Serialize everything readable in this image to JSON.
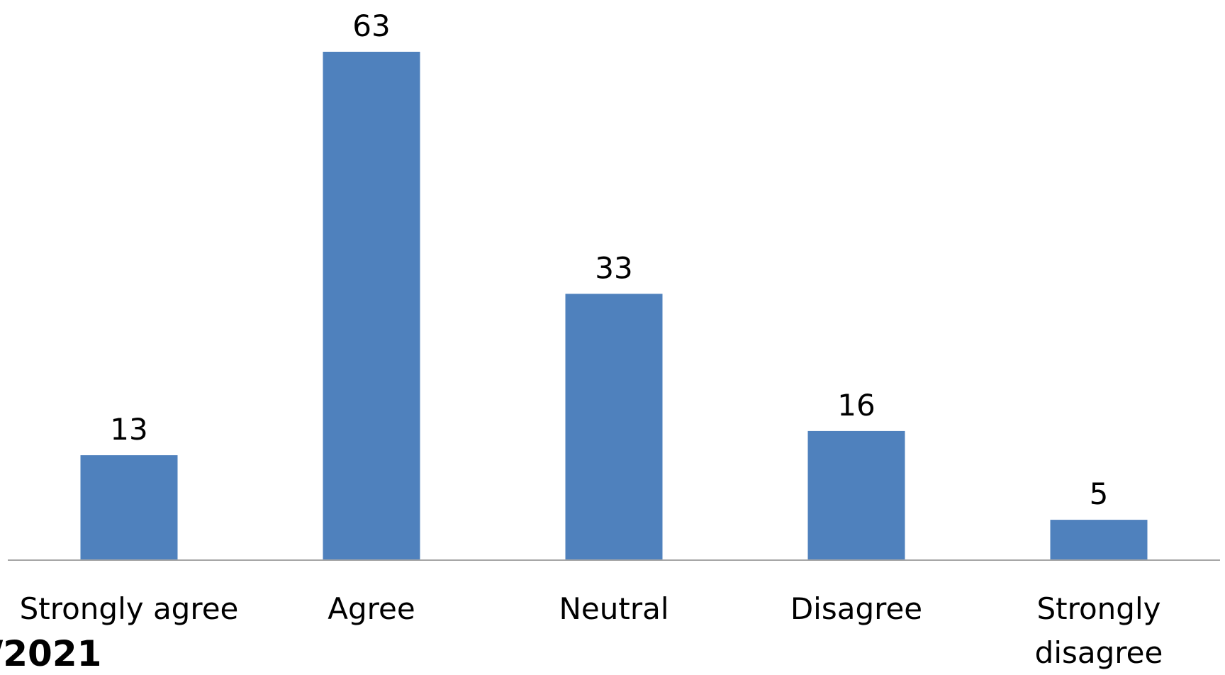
{
  "chart_data": {
    "type": "bar",
    "categories": [
      "Strongly agree",
      "Agree",
      "Neutral",
      "Disagree",
      "Strongly disagree"
    ],
    "values": [
      13,
      63,
      33,
      16,
      5
    ],
    "color": "#4f81bd",
    "footer_text": "/2021"
  }
}
